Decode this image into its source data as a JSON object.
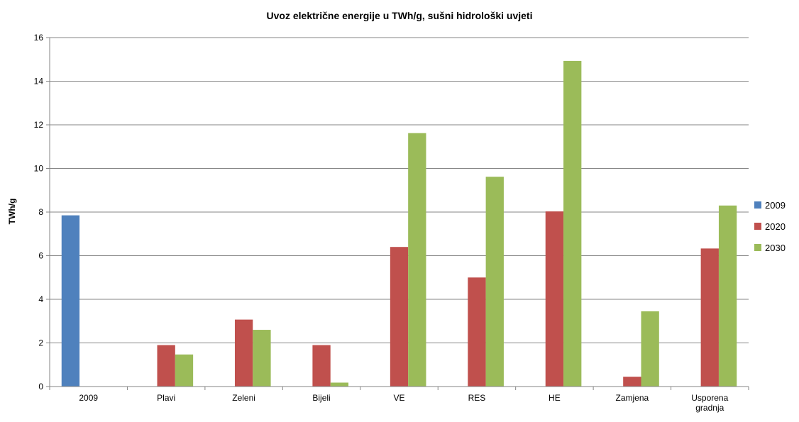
{
  "chart_data": {
    "type": "bar",
    "title": "Uvoz električne energije u TWh/g, sušni hidrološki uvjeti",
    "xlabel": "",
    "ylabel": "TWh/g",
    "ylim": [
      0,
      16
    ],
    "yticks": [
      "0",
      "2",
      "4",
      "6",
      "8",
      "10",
      "12",
      "14",
      "16"
    ],
    "grid": true,
    "legend_position": "right",
    "categories": [
      "2009",
      "Plavi",
      "Zeleni",
      "Bijeli",
      "VE",
      "RES",
      "HE",
      "Zamjena",
      [
        "Usporena",
        "gradnja"
      ]
    ],
    "series": [
      {
        "name": "2009",
        "color": "#4f81bd",
        "values": [
          7.85,
          0,
          0,
          0,
          0,
          0,
          0,
          0,
          0
        ]
      },
      {
        "name": "2020",
        "color": "#c0504d",
        "values": [
          0,
          1.9,
          3.07,
          1.9,
          6.4,
          5.0,
          8.03,
          0.45,
          6.33
        ]
      },
      {
        "name": "2030",
        "color": "#9bbb59",
        "values": [
          0,
          1.47,
          2.6,
          0.18,
          11.62,
          9.62,
          14.93,
          3.45,
          8.3
        ]
      }
    ]
  }
}
